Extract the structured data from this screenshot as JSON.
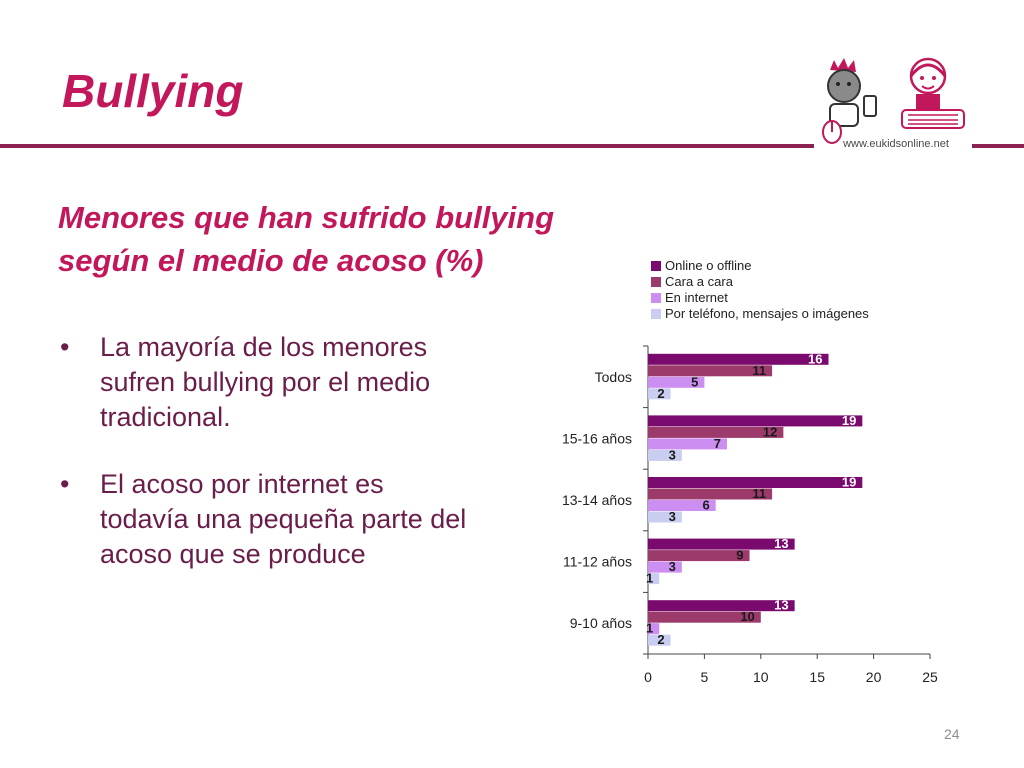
{
  "slide": {
    "title": "Bullying",
    "subtitle_line1": "Menores que han sufrido bullying",
    "subtitle_line2": "según el medio de acoso (%)",
    "website": "www.eukidsonline.net",
    "page_number": "24",
    "bullets": [
      "La mayoría de los menores sufren bullying por el medio tradicional.",
      "El acoso por internet es todavía una pequeña parte del acoso que se produce"
    ],
    "bullet_symbol": "•"
  },
  "colors": {
    "accent": "#c2185b",
    "rule": "#8b2252",
    "body_text": "#6b1d4a"
  },
  "chart_data": {
    "type": "bar",
    "orientation": "horizontal",
    "categories": [
      "Todos",
      "15-16 años",
      "13-14 años",
      "11-12 años",
      "9-10 años"
    ],
    "series": [
      {
        "name": "Online o offline",
        "color": "#7b0a6e",
        "values": [
          16,
          19,
          19,
          13,
          13
        ]
      },
      {
        "name": "Cara a cara",
        "color": "#9c3a6b",
        "values": [
          11,
          12,
          11,
          9,
          10
        ]
      },
      {
        "name": "En internet",
        "color": "#cc8ef0",
        "values": [
          5,
          7,
          6,
          3,
          1
        ]
      },
      {
        "name": "Por teléfono, mensajes o imágenes",
        "color": "#c9cdf0",
        "values": [
          2,
          3,
          3,
          1,
          2
        ]
      }
    ],
    "xlim": [
      0,
      25
    ],
    "xticks": [
      0,
      5,
      10,
      15,
      20,
      25
    ],
    "legend_position": "top",
    "grid": false,
    "title": "",
    "xlabel": "",
    "ylabel": ""
  }
}
